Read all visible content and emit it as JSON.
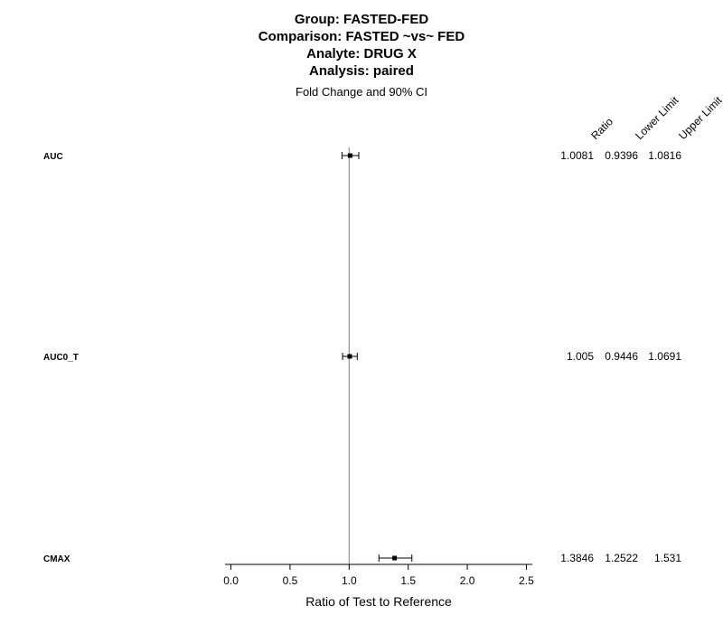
{
  "titles": {
    "group": "Group: FASTED-FED",
    "comparison": "Comparison: FASTED ~vs~ FED",
    "analyte": "Analyte: DRUG X",
    "analysis": "Analysis: paired",
    "subtitle": "Fold Change and 90% CI"
  },
  "chart_data": {
    "type": "forest",
    "xlabel": "Ratio of Test to Reference",
    "xlim": [
      -0.05,
      2.55
    ],
    "xticks": [
      0.0,
      0.5,
      1.0,
      1.5,
      2.0,
      2.5
    ],
    "xtick_labels": [
      "0.0",
      "0.5",
      "1.0",
      "1.5",
      "2.0",
      "2.5"
    ],
    "reference_line": 1.0,
    "column_headers": [
      "Ratio",
      "Lower Limit",
      "Upper Limit"
    ],
    "rows": [
      {
        "label": "AUC",
        "ratio": 1.0081,
        "lower": 0.9396,
        "upper": 1.0816,
        "ratio_text": "1.0081",
        "lower_text": "0.9396",
        "upper_text": "1.0816"
      },
      {
        "label": "AUC0_T",
        "ratio": 1.005,
        "lower": 0.9446,
        "upper": 1.0691,
        "ratio_text": "1.005",
        "lower_text": "0.9446",
        "upper_text": "1.0691"
      },
      {
        "label": "CMAX",
        "ratio": 1.3846,
        "lower": 1.2522,
        "upper": 1.531,
        "ratio_text": "1.3846",
        "lower_text": "1.2522",
        "upper_text": "1.531"
      }
    ]
  }
}
